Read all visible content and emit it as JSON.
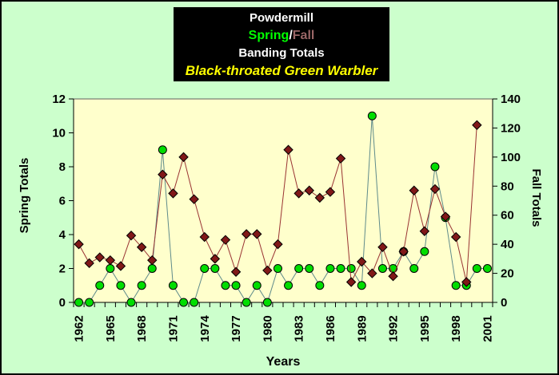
{
  "window": {
    "background_color": "#CCFFCC",
    "border_color": "#000000"
  },
  "title_box": {
    "background_color": "#000000",
    "line1": "Powdermill",
    "spring_label": "Spring",
    "separator": "/",
    "fall_label": "Fall",
    "line3": "Banding Totals",
    "line4": "Black-throated Green Warbler",
    "colors": {
      "line1": "#FFFFFF",
      "spring_label": "#00FF00",
      "separator": "#FFFFFF",
      "fall_label": "#996666",
      "line3": "#FFFFFF",
      "line4": "#FFFF00"
    }
  },
  "chart_data": {
    "type": "line",
    "xlabel": "Years",
    "x": [
      1962,
      1963,
      1964,
      1965,
      1966,
      1967,
      1968,
      1969,
      1970,
      1971,
      1972,
      1973,
      1974,
      1975,
      1976,
      1977,
      1978,
      1979,
      1980,
      1981,
      1982,
      1983,
      1984,
      1985,
      1986,
      1987,
      1988,
      1989,
      1990,
      1991,
      1992,
      1993,
      1994,
      1995,
      1996,
      1997,
      1998,
      1999,
      2000,
      2001
    ],
    "x_tick_labels": [
      "1962",
      "1965",
      "1968",
      "1971",
      "1974",
      "1977",
      "1980",
      "1983",
      "1986",
      "1989",
      "1992",
      "1995",
      "1998",
      "2001"
    ],
    "x_tick_interval": 3,
    "left_axis": {
      "label": "Spring Totals",
      "min": 0,
      "max": 12,
      "step": 2
    },
    "right_axis": {
      "label": "Fall Totals",
      "min": 0,
      "max": 140,
      "step": 20
    },
    "grid": "top-border-only",
    "legend": "embedded-in-title",
    "plot_background": "#FFFFCC",
    "outer_background": "#CCFFCC",
    "series": [
      {
        "name": "Spring",
        "axis": "left",
        "marker": "circle",
        "marker_color": "#00DD00",
        "marker_edge": "#000000",
        "line_color": "#5F8B8B",
        "values": [
          0,
          0,
          1,
          2,
          1,
          0,
          1,
          2,
          9,
          1,
          0,
          0,
          2,
          2,
          1,
          1,
          0,
          1,
          0,
          2,
          1,
          2,
          2,
          1,
          2,
          2,
          2,
          1,
          11,
          2,
          2,
          3,
          2,
          3,
          8,
          5,
          1,
          1,
          2,
          2
        ]
      },
      {
        "name": "Fall",
        "axis": "right",
        "marker": "diamond",
        "marker_color": "#801818",
        "marker_edge": "#000000",
        "line_color": "#993333",
        "values": [
          40,
          27,
          31,
          29,
          25,
          46,
          38,
          29,
          88,
          75,
          100,
          71,
          45,
          30,
          43,
          21,
          47,
          47,
          22,
          40,
          105,
          75,
          77,
          72,
          76,
          99,
          14,
          28,
          20,
          38,
          18,
          35,
          77,
          49,
          78,
          59,
          45,
          14,
          122,
          null
        ]
      }
    ]
  }
}
